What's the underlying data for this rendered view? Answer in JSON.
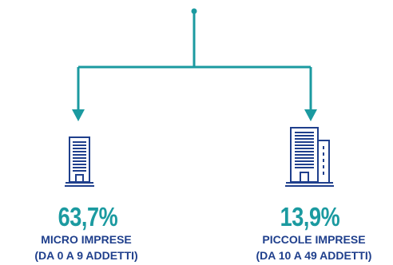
{
  "colors": {
    "connector": "#1b9aa0",
    "icon": "#1f3f8c",
    "percent": "#1b9aa0",
    "label": "#1f3f8c"
  },
  "nodes": [
    {
      "id": "micro",
      "percent": "63,7%",
      "label_line1": "MICRO IMPRESE",
      "label_line2": "(DA 0 A 9 ADDETTI)",
      "icon": "single-building-icon"
    },
    {
      "id": "piccole",
      "percent": "13,9%",
      "label_line1": "PICCOLE IMPRESE",
      "label_line2": "(DA 10 A 49 ADDETTI)",
      "icon": "double-building-icon"
    }
  ]
}
